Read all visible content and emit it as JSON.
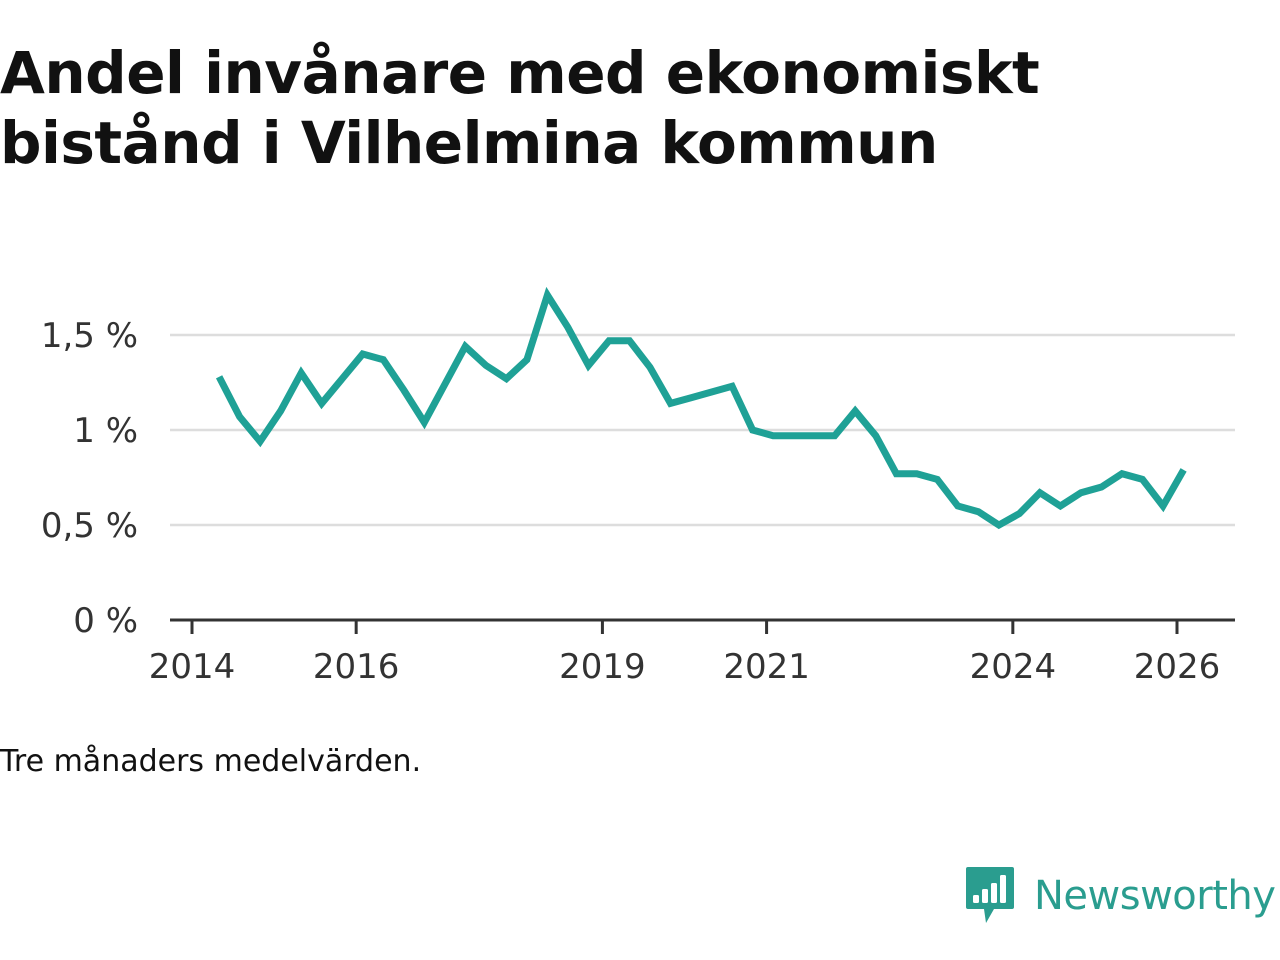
{
  "title": "Andel invånare med ekonomiskt bistånd i Vilhelmina kommun",
  "note": "Tre månaders medelvärden.",
  "brand": {
    "name": "Newsworthy",
    "icon": "newsworthy-logo-icon"
  },
  "colors": {
    "line": "#1fa196",
    "grid": "#dddddd",
    "axis": "#333333",
    "brand": "#2a9d8f"
  },
  "chart_data": {
    "type": "line",
    "title": "Andel invånare med ekonomiskt bistånd i Vilhelmina kommun",
    "xlabel": "",
    "ylabel": "",
    "x_range": [
      2013.7,
      2026.8
    ],
    "ylim": [
      0,
      1.8
    ],
    "y_ticks": [
      {
        "value": 0,
        "label": "0 %"
      },
      {
        "value": 0.5,
        "label": "0,5 %"
      },
      {
        "value": 1,
        "label": "1 %"
      },
      {
        "value": 1.5,
        "label": "1,5 %"
      }
    ],
    "x_ticks": [
      {
        "value": 2014,
        "label": "2014"
      },
      {
        "value": 2016,
        "label": "2016"
      },
      {
        "value": 2019,
        "label": "2019"
      },
      {
        "value": 2021,
        "label": "2021"
      },
      {
        "value": 2024,
        "label": "2024"
      },
      {
        "value": 2026,
        "label": "2026"
      }
    ],
    "grid": true,
    "series": [
      {
        "name": "Andel invånare med ekonomiskt bistånd",
        "x": [
          2014.33,
          2014.58,
          2014.83,
          2015.08,
          2015.33,
          2015.58,
          2015.83,
          2016.08,
          2016.33,
          2016.58,
          2016.83,
          2017.08,
          2017.33,
          2017.58,
          2017.83,
          2018.08,
          2018.33,
          2018.58,
          2018.83,
          2019.08,
          2019.33,
          2019.58,
          2019.83,
          2020.08,
          2020.33,
          2020.58,
          2020.83,
          2021.08,
          2021.33,
          2021.58,
          2021.83,
          2022.08,
          2022.33,
          2022.58,
          2022.83,
          2023.08,
          2023.33,
          2023.58,
          2023.83,
          2024.08,
          2024.33,
          2024.58,
          2024.83,
          2025.08,
          2025.33,
          2025.58,
          2025.83,
          2026.08
        ],
        "values": [
          1.28,
          1.07,
          0.94,
          1.1,
          1.3,
          1.14,
          1.27,
          1.4,
          1.37,
          1.21,
          1.04,
          1.24,
          1.44,
          1.34,
          1.27,
          1.37,
          1.71,
          1.54,
          1.34,
          1.47,
          1.47,
          1.33,
          1.14,
          1.17,
          1.2,
          1.23,
          1.0,
          0.97,
          0.97,
          0.97,
          0.97,
          1.1,
          0.97,
          0.77,
          0.77,
          0.74,
          0.6,
          0.57,
          0.5,
          0.56,
          0.67,
          0.6,
          0.67,
          0.7,
          0.77,
          0.74,
          0.6,
          0.79
        ]
      }
    ]
  }
}
